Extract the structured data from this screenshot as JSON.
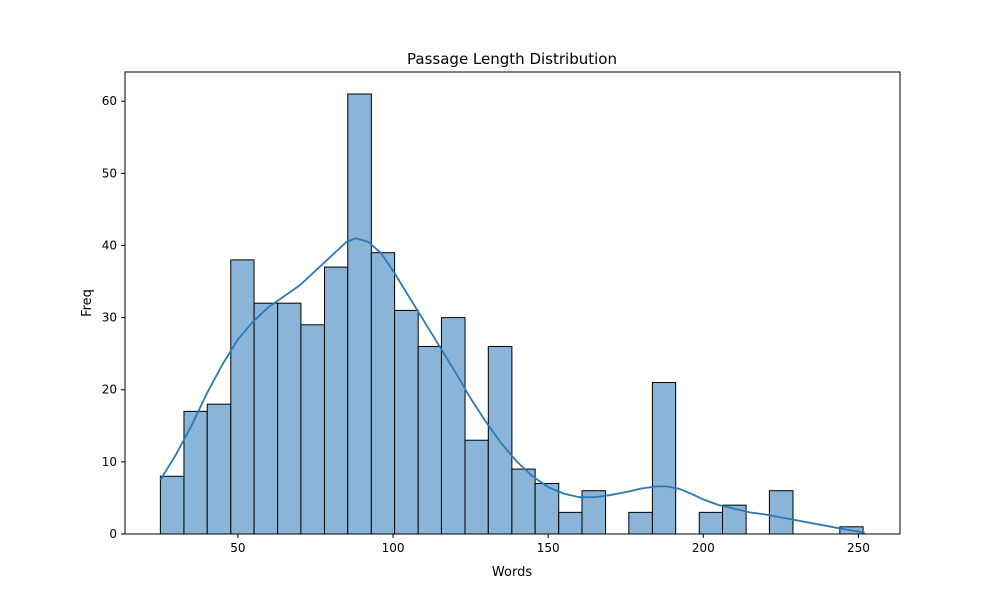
{
  "chart_data": {
    "type": "bar",
    "subtype": "histogram",
    "title": "Passage Length Distribution",
    "xlabel": "Words",
    "ylabel": "Freq",
    "xlim": [
      13.6,
      263.4
    ],
    "ylim": [
      0,
      64.05
    ],
    "xticks": [
      50,
      100,
      150,
      200,
      250
    ],
    "yticks": [
      0,
      10,
      20,
      30,
      40,
      50,
      60
    ],
    "grid": false,
    "legend": "none",
    "colors": {
      "bar_fill": "#8ab5d8",
      "bar_edge": "#000000",
      "kde_line": "#2a7ab8",
      "axes": "#000000"
    },
    "bins": [
      {
        "x0": 25.0,
        "x1": 32.6,
        "count": 8
      },
      {
        "x0": 32.6,
        "x1": 40.1,
        "count": 17
      },
      {
        "x0": 40.1,
        "x1": 47.7,
        "count": 18
      },
      {
        "x0": 47.7,
        "x1": 55.2,
        "count": 38
      },
      {
        "x0": 55.2,
        "x1": 62.8,
        "count": 32
      },
      {
        "x0": 62.8,
        "x1": 70.3,
        "count": 32
      },
      {
        "x0": 70.3,
        "x1": 77.9,
        "count": 29
      },
      {
        "x0": 77.9,
        "x1": 85.4,
        "count": 37
      },
      {
        "x0": 85.4,
        "x1": 93.0,
        "count": 61
      },
      {
        "x0": 93.0,
        "x1": 100.5,
        "count": 39
      },
      {
        "x0": 100.5,
        "x1": 108.1,
        "count": 31
      },
      {
        "x0": 108.1,
        "x1": 115.6,
        "count": 26
      },
      {
        "x0": 115.6,
        "x1": 123.2,
        "count": 30
      },
      {
        "x0": 123.2,
        "x1": 130.7,
        "count": 13
      },
      {
        "x0": 130.7,
        "x1": 138.3,
        "count": 26
      },
      {
        "x0": 138.3,
        "x1": 145.8,
        "count": 9
      },
      {
        "x0": 145.8,
        "x1": 153.4,
        "count": 7
      },
      {
        "x0": 153.4,
        "x1": 160.9,
        "count": 3
      },
      {
        "x0": 160.9,
        "x1": 168.5,
        "count": 6
      },
      {
        "x0": 168.5,
        "x1": 176.0,
        "count": 0
      },
      {
        "x0": 176.0,
        "x1": 183.6,
        "count": 3
      },
      {
        "x0": 183.6,
        "x1": 191.1,
        "count": 21
      },
      {
        "x0": 191.1,
        "x1": 198.7,
        "count": 0
      },
      {
        "x0": 198.7,
        "x1": 206.2,
        "count": 3
      },
      {
        "x0": 206.2,
        "x1": 213.8,
        "count": 4
      },
      {
        "x0": 213.8,
        "x1": 221.3,
        "count": 0
      },
      {
        "x0": 221.3,
        "x1": 228.9,
        "count": 6
      },
      {
        "x0": 228.9,
        "x1": 236.4,
        "count": 0
      },
      {
        "x0": 236.4,
        "x1": 244.0,
        "count": 0
      },
      {
        "x0": 244.0,
        "x1": 251.5,
        "count": 1
      }
    ],
    "kde": {
      "x": [
        25,
        30,
        35,
        40,
        45,
        50,
        55,
        60,
        65,
        70,
        75,
        80,
        85,
        88,
        92,
        96,
        100,
        105,
        110,
        115,
        120,
        125,
        130,
        135,
        140,
        145,
        150,
        155,
        160,
        165,
        170,
        175,
        180,
        185,
        188,
        192,
        196,
        200,
        205,
        210,
        215,
        220,
        225,
        230,
        235,
        240,
        245,
        252
      ],
      "y": [
        7.5,
        11,
        15,
        19.5,
        23.5,
        27,
        29.5,
        31.5,
        33,
        34.5,
        36.5,
        38.5,
        40.5,
        41,
        40.5,
        39,
        36.5,
        33,
        29.5,
        26,
        22.5,
        18.8,
        15.5,
        12.5,
        10,
        8,
        6.5,
        5.6,
        5.1,
        5.1,
        5.4,
        5.8,
        6.3,
        6.6,
        6.6,
        6.3,
        5.6,
        4.8,
        4.0,
        3.5,
        3.0,
        2.7,
        2.3,
        1.9,
        1.5,
        1.1,
        0.7,
        0.2
      ]
    }
  }
}
